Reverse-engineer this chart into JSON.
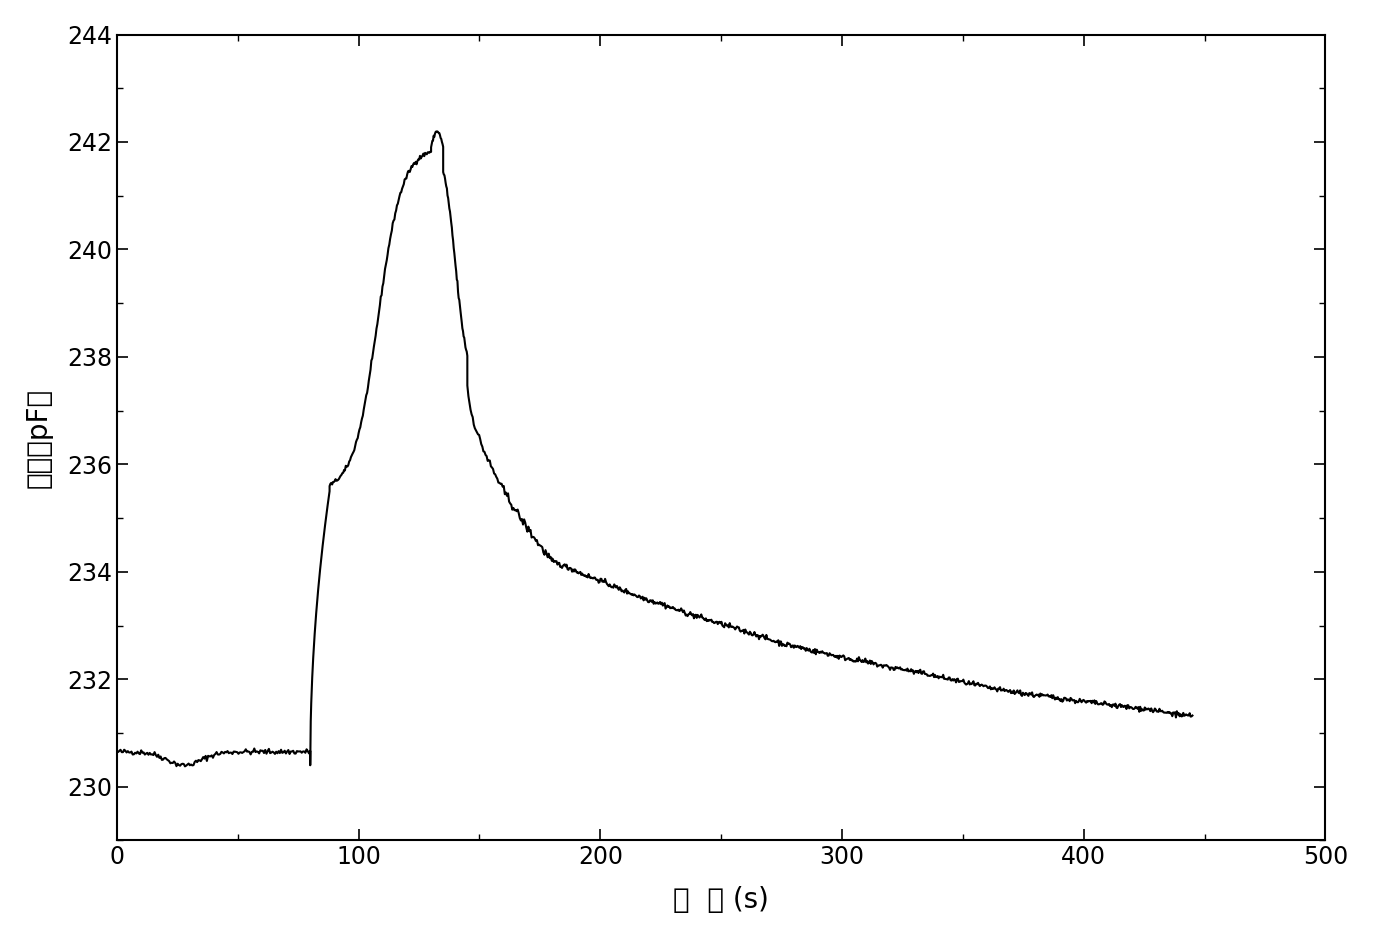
{
  "title": "",
  "xlabel": "时  间 (s)",
  "ylabel": "电容（pF）",
  "xlim": [
    0,
    500
  ],
  "ylim": [
    229,
    244
  ],
  "xticks": [
    0,
    100,
    200,
    300,
    400,
    500
  ],
  "yticks": [
    230,
    232,
    234,
    236,
    238,
    240,
    242,
    244
  ],
  "line_color": "#000000",
  "line_width": 1.5,
  "background_color": "#ffffff",
  "xlabel_fontsize": 20,
  "ylabel_fontsize": 20,
  "tick_fontsize": 17
}
